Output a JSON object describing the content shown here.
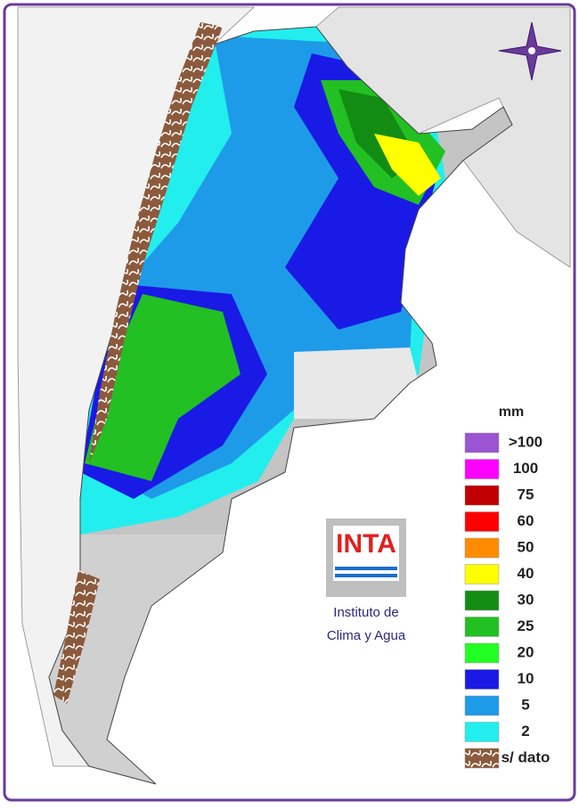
{
  "legend": {
    "title": "mm",
    "items": [
      {
        "label": ">100",
        "color": "#9b55d3"
      },
      {
        "label": "100",
        "color": "#ff00ff"
      },
      {
        "label": "75",
        "color": "#c00000"
      },
      {
        "label": "60",
        "color": "#ff0000"
      },
      {
        "label": "50",
        "color": "#ff8c00"
      },
      {
        "label": "40",
        "color": "#ffff00"
      },
      {
        "label": "30",
        "color": "#128c12"
      },
      {
        "label": "25",
        "color": "#22c022"
      },
      {
        "label": "20",
        "color": "#22ff22"
      },
      {
        "label": "10",
        "color": "#1a1ae6"
      },
      {
        "label": "5",
        "color": "#1e9be8"
      },
      {
        "label": "2",
        "color": "#22eeee"
      },
      {
        "label": "s/ dato",
        "color": "#8b5a3c"
      }
    ]
  },
  "logo": {
    "name": "INTA",
    "line1": "Instituto de",
    "line2": "Clima y Agua"
  }
}
